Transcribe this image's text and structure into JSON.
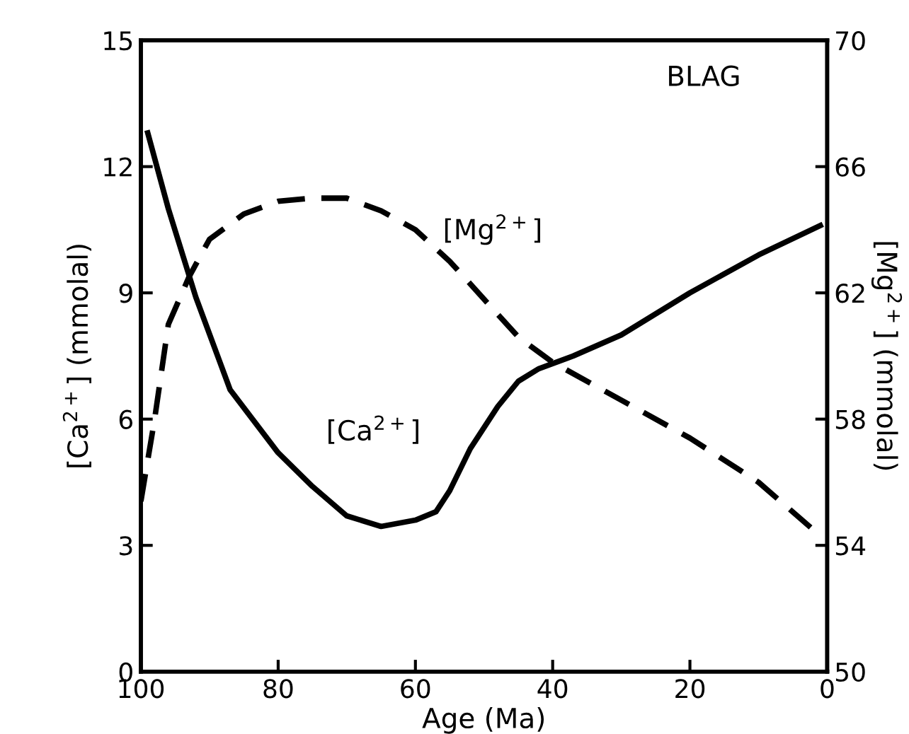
{
  "chart_data": {
    "type": "line",
    "xlabel": "Age (Ma)",
    "ylabel": "[Ca$^{2+}$] (mmolal)",
    "y2label": "[Mg$^{2+}$] (mmolal)",
    "xlim": [
      100,
      0
    ],
    "xticks": [
      100,
      80,
      60,
      40,
      20,
      0
    ],
    "ylim": [
      0,
      15
    ],
    "yticks": [
      0,
      3,
      6,
      9,
      12,
      15
    ],
    "y2lim": [
      50,
      70
    ],
    "y2ticks": [
      50,
      54,
      58,
      62,
      66,
      70
    ],
    "grid": false,
    "legend": false,
    "series": [
      {
        "color": "#000000",
        "line_style": "solid",
        "x": [
          99,
          96,
          92,
          87,
          80,
          75,
          70,
          65,
          60,
          57,
          55,
          52,
          48,
          45,
          42,
          37,
          30,
          20,
          10,
          1
        ],
        "values": [
          12.8,
          11.0,
          8.9,
          6.7,
          5.2,
          4.4,
          3.7,
          3.45,
          3.6,
          3.8,
          4.3,
          5.3,
          6.3,
          6.9,
          7.2,
          7.5,
          8.0,
          9.0,
          9.9,
          10.6
        ]
      },
      {
        "color": "#000000",
        "line_style": "dashed",
        "axis": "y2",
        "x": [
          100,
          98,
          96,
          93,
          90,
          85,
          80,
          75,
          70,
          65,
          60,
          55,
          50,
          45,
          40,
          30,
          20,
          10,
          1
        ],
        "values": [
          55.4,
          58,
          61,
          62.5,
          63.7,
          64.5,
          64.9,
          65,
          65,
          64.6,
          64,
          63,
          61.8,
          60.6,
          59.8,
          58.6,
          57.4,
          56,
          54.3
        ]
      }
    ],
    "annotations": [
      "[Ca$^{2+}$]",
      "[Mg$^{2+}$]",
      "BLAG"
    ]
  }
}
